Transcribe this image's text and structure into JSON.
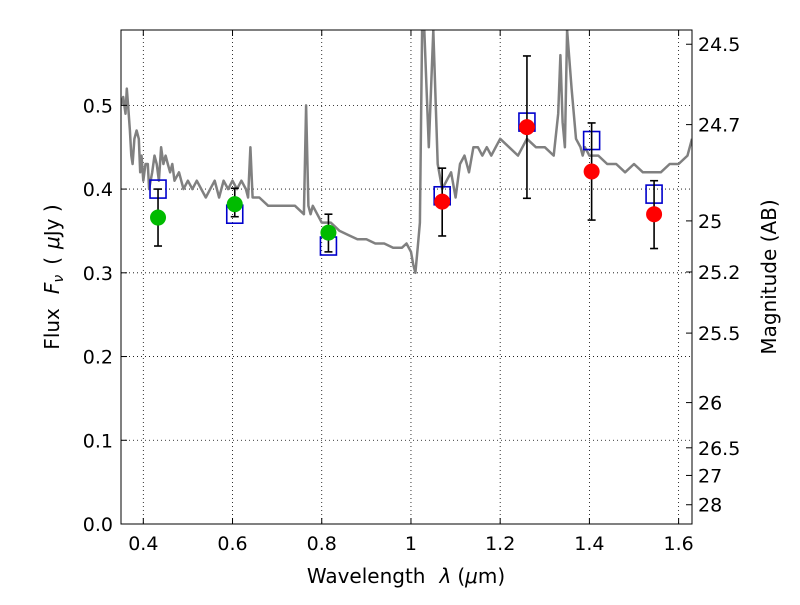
{
  "chart_data": {
    "type": "scatter",
    "xlabel_prefix": "Wavelength",
    "xlabel_symbol": "λ",
    "xlabel_units": "(",
    "xlabel_mu": "μ",
    "xlabel_units_end": "m)",
    "ylabel_left_prefix": "Flux",
    "ylabel_left_symbol": "F",
    "ylabel_left_sub": "ν",
    "ylabel_left_units_open": "(",
    "ylabel_left_mu": "μ",
    "ylabel_left_units_close": "Jy )",
    "ylabel_right": "Magnitude (AB)",
    "xlim": [
      0.35,
      1.63
    ],
    "ylim": [
      0.0,
      0.59
    ],
    "grid": true,
    "x_ticks": [
      0.4,
      0.6,
      0.8,
      1.0,
      1.2,
      1.4,
      1.6
    ],
    "x_tick_labels": [
      "0.4",
      "0.6",
      "0.8",
      "1",
      "1.2",
      "1.4",
      "1.6"
    ],
    "y_ticks": [
      0.0,
      0.1,
      0.2,
      0.3,
      0.4,
      0.5
    ],
    "y_tick_labels": [
      "0.0",
      "0.1",
      "0.2",
      "0.3",
      "0.4",
      "0.5"
    ],
    "right_ticks": [
      {
        "label": "24.5",
        "flux": 0.573
      },
      {
        "label": "24.7",
        "flux": 0.477
      },
      {
        "label": "25",
        "flux": 0.362
      },
      {
        "label": "25.2",
        "flux": 0.301
      },
      {
        "label": "25.5",
        "flux": 0.228
      },
      {
        "label": "26",
        "flux": 0.145
      },
      {
        "label": "26.5",
        "flux": 0.091
      },
      {
        "label": "27",
        "flux": 0.058
      },
      {
        "label": "28",
        "flux": 0.023
      }
    ],
    "colors": {
      "template": "#808080",
      "model_box": "#0000cc",
      "green": "#00bb00",
      "red": "#ff0000",
      "errorbar": "#000000"
    },
    "template_spectrum": {
      "x": [
        0.35,
        0.355,
        0.36,
        0.363,
        0.366,
        0.37,
        0.373,
        0.376,
        0.38,
        0.385,
        0.39,
        0.393,
        0.396,
        0.4,
        0.405,
        0.41,
        0.413,
        0.42,
        0.425,
        0.43,
        0.435,
        0.44,
        0.445,
        0.45,
        0.455,
        0.46,
        0.465,
        0.47,
        0.48,
        0.49,
        0.5,
        0.51,
        0.52,
        0.53,
        0.54,
        0.55,
        0.56,
        0.57,
        0.58,
        0.59,
        0.6,
        0.61,
        0.62,
        0.63,
        0.635,
        0.64,
        0.645,
        0.65,
        0.66,
        0.68,
        0.7,
        0.72,
        0.74,
        0.76,
        0.765,
        0.77,
        0.775,
        0.78,
        0.8,
        0.82,
        0.84,
        0.86,
        0.88,
        0.9,
        0.92,
        0.94,
        0.96,
        0.98,
        0.99,
        1.0,
        1.005,
        1.01,
        1.015,
        1.02,
        1.025,
        1.03,
        1.04,
        1.05,
        1.06,
        1.07,
        1.08,
        1.09,
        1.1,
        1.11,
        1.12,
        1.13,
        1.14,
        1.15,
        1.16,
        1.17,
        1.18,
        1.19,
        1.2,
        1.22,
        1.24,
        1.26,
        1.28,
        1.3,
        1.32,
        1.33,
        1.335,
        1.34,
        1.345,
        1.35,
        1.36,
        1.37,
        1.38,
        1.385,
        1.39,
        1.4,
        1.42,
        1.44,
        1.46,
        1.48,
        1.5,
        1.52,
        1.54,
        1.56,
        1.58,
        1.6,
        1.62,
        1.63
      ],
      "y": [
        0.5,
        0.51,
        0.49,
        0.52,
        0.5,
        0.47,
        0.44,
        0.43,
        0.46,
        0.47,
        0.46,
        0.42,
        0.44,
        0.41,
        0.43,
        0.43,
        0.4,
        0.42,
        0.44,
        0.43,
        0.41,
        0.45,
        0.43,
        0.44,
        0.43,
        0.42,
        0.43,
        0.41,
        0.42,
        0.4,
        0.41,
        0.4,
        0.41,
        0.4,
        0.39,
        0.4,
        0.41,
        0.39,
        0.41,
        0.4,
        0.41,
        0.4,
        0.41,
        0.4,
        0.39,
        0.45,
        0.39,
        0.39,
        0.39,
        0.38,
        0.38,
        0.38,
        0.38,
        0.37,
        0.5,
        0.38,
        0.37,
        0.38,
        0.36,
        0.36,
        0.35,
        0.345,
        0.34,
        0.34,
        0.335,
        0.335,
        0.33,
        0.33,
        0.335,
        0.325,
        0.31,
        0.3,
        0.33,
        0.36,
        0.59,
        0.59,
        0.45,
        0.59,
        0.43,
        0.4,
        0.41,
        0.42,
        0.39,
        0.43,
        0.44,
        0.42,
        0.45,
        0.45,
        0.44,
        0.45,
        0.44,
        0.45,
        0.46,
        0.45,
        0.44,
        0.46,
        0.45,
        0.45,
        0.44,
        0.49,
        0.56,
        0.48,
        0.45,
        0.59,
        0.52,
        0.46,
        0.45,
        0.44,
        0.45,
        0.44,
        0.44,
        0.43,
        0.43,
        0.42,
        0.43,
        0.42,
        0.42,
        0.42,
        0.43,
        0.43,
        0.44,
        0.46
      ]
    },
    "model_points": {
      "x": [
        0.433,
        0.605,
        0.815,
        1.07,
        1.26,
        1.405,
        1.545
      ],
      "y": [
        0.4,
        0.37,
        0.332,
        0.392,
        0.48,
        0.458,
        0.394
      ]
    },
    "observed_points": [
      {
        "x": 0.433,
        "y": 0.366,
        "err_low": 0.332,
        "err_high": 0.4,
        "color": "green"
      },
      {
        "x": 0.605,
        "y": 0.382,
        "err_low": 0.367,
        "err_high": 0.401,
        "color": "green"
      },
      {
        "x": 0.815,
        "y": 0.348,
        "err_low": 0.325,
        "err_high": 0.37,
        "color": "green"
      },
      {
        "x": 1.07,
        "y": 0.385,
        "err_low": 0.344,
        "err_high": 0.425,
        "color": "red"
      },
      {
        "x": 1.26,
        "y": 0.474,
        "err_low": 0.389,
        "err_high": 0.559,
        "color": "red"
      },
      {
        "x": 1.405,
        "y": 0.421,
        "err_low": 0.363,
        "err_high": 0.479,
        "color": "red"
      },
      {
        "x": 1.545,
        "y": 0.37,
        "err_low": 0.329,
        "err_high": 0.41,
        "color": "red"
      }
    ]
  }
}
